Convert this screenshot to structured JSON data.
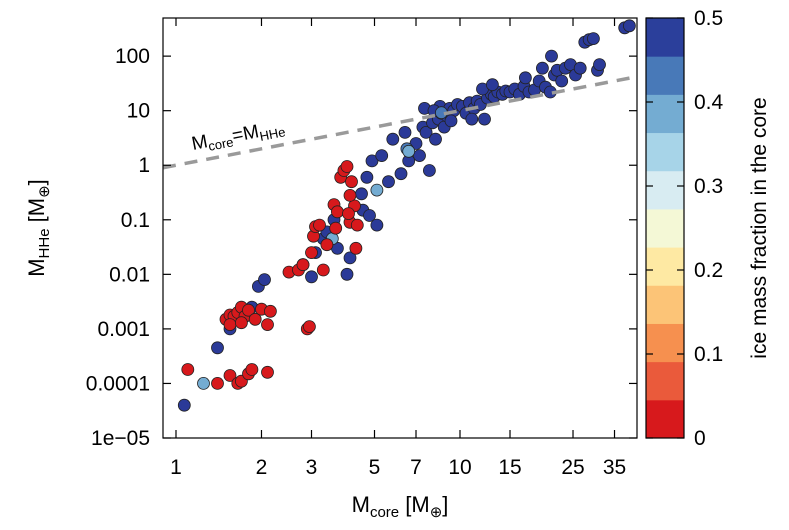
{
  "chart_data": {
    "type": "scatter",
    "xscale": "log",
    "yscale": "log",
    "xlim": [
      0.9,
      42
    ],
    "ylim": [
      1e-05,
      500
    ],
    "grid": false,
    "xlabel": {
      "main": "M",
      "sub": "core",
      "unit": " [M",
      "sym": "⊕",
      "close": "]"
    },
    "ylabel": {
      "main": "M",
      "sub": "HHe",
      "unit": " [M",
      "sym": "⊕",
      "close": "]"
    },
    "xticks": [
      {
        "value": 1,
        "label": "1"
      },
      {
        "value": 2,
        "label": "2"
      },
      {
        "value": 3,
        "label": "3"
      },
      {
        "value": 5,
        "label": "5"
      },
      {
        "value": 7,
        "label": "7"
      },
      {
        "value": 10,
        "label": "10"
      },
      {
        "value": 15,
        "label": "15"
      },
      {
        "value": 25,
        "label": "25"
      },
      {
        "value": 35,
        "label": "35"
      }
    ],
    "yticks": [
      {
        "value": 1e-05,
        "label": "1e−05"
      },
      {
        "value": 0.0001,
        "label": "0.0001"
      },
      {
        "value": 0.001,
        "label": "0.001"
      },
      {
        "value": 0.01,
        "label": "0.01"
      },
      {
        "value": 0.1,
        "label": "0.1"
      },
      {
        "value": 1,
        "label": "1"
      },
      {
        "value": 10,
        "label": "10"
      },
      {
        "value": 100,
        "label": "100"
      }
    ],
    "reference_line": {
      "label_main": "M",
      "label_sub1": "core",
      "label_eq": "=M",
      "label_sub2": "HHe",
      "x": [
        0.9,
        42
      ],
      "y": [
        0.9,
        42
      ],
      "color": "#9a9a9a"
    },
    "colorbar": {
      "label": "ice mass fraction in the core",
      "range": [
        0,
        0.5
      ],
      "ticks": [
        {
          "value": 0,
          "label": "0"
        },
        {
          "value": 0.1,
          "label": "0.1"
        },
        {
          "value": 0.2,
          "label": "0.2"
        },
        {
          "value": 0.3,
          "label": "0.3"
        },
        {
          "value": 0.4,
          "label": "0.4"
        },
        {
          "value": 0.5,
          "label": "0.5"
        }
      ],
      "colors": [
        "#d7191c",
        "#ea5a3b",
        "#f6904f",
        "#fcc477",
        "#fee9a3",
        "#f4f8d6",
        "#d8ecf2",
        "#a7d4e8",
        "#74acd2",
        "#4879b8",
        "#2b3f9b"
      ]
    },
    "series": [
      {
        "ice": 0.5,
        "color": "#2b3a98",
        "points": [
          [
            1.07,
            4e-05
          ],
          [
            1.4,
            0.00045
          ],
          [
            1.55,
            0.001
          ],
          [
            1.85,
            0.0025
          ],
          [
            1.95,
            0.006
          ],
          [
            2.05,
            0.008
          ],
          [
            2.8,
            0.015
          ],
          [
            3.0,
            0.009
          ],
          [
            3.1,
            0.025
          ],
          [
            3.3,
            0.045
          ],
          [
            3.4,
            0.06
          ],
          [
            3.6,
            0.1
          ],
          [
            3.7,
            0.03
          ],
          [
            4.0,
            0.01
          ],
          [
            4.1,
            0.02
          ],
          [
            4.5,
            0.3
          ],
          [
            4.55,
            0.15
          ],
          [
            4.7,
            0.6
          ],
          [
            4.8,
            0.12
          ],
          [
            4.9,
            1.2
          ],
          [
            5.1,
            0.08
          ],
          [
            5.3,
            1.5
          ],
          [
            5.6,
            0.5
          ],
          [
            5.8,
            3
          ],
          [
            6.2,
            0.7
          ],
          [
            6.4,
            4
          ],
          [
            6.6,
            1.2
          ],
          [
            7.0,
            2.5
          ],
          [
            7.2,
            1.5
          ],
          [
            7.4,
            5
          ],
          [
            7.6,
            4
          ],
          [
            7.8,
            0.8
          ],
          [
            7.5,
            11
          ],
          [
            8.0,
            6
          ],
          [
            8.2,
            3
          ],
          [
            8.4,
            7
          ],
          [
            8.6,
            9
          ],
          [
            8.8,
            5
          ],
          [
            8.5,
            12
          ],
          [
            9.0,
            8
          ],
          [
            9.2,
            11
          ],
          [
            9.5,
            10
          ],
          [
            9.8,
            13
          ],
          [
            10.2,
            12
          ],
          [
            10.5,
            9
          ],
          [
            10.8,
            14
          ],
          [
            11.2,
            11
          ],
          [
            11.5,
            15
          ],
          [
            11.8,
            13
          ],
          [
            12.2,
            7
          ],
          [
            12.5,
            17
          ],
          [
            12.9,
            20
          ],
          [
            13.2,
            18
          ],
          [
            13.6,
            22
          ],
          [
            14.1,
            20
          ],
          [
            14.5,
            23
          ],
          [
            15.0,
            22
          ],
          [
            15.6,
            25
          ],
          [
            16.2,
            20
          ],
          [
            16.8,
            28
          ],
          [
            17.5,
            22
          ],
          [
            18.3,
            24
          ],
          [
            19.0,
            35
          ],
          [
            20.0,
            27
          ],
          [
            20.8,
            22
          ],
          [
            21.5,
            45
          ],
          [
            22.0,
            55
          ],
          [
            22.8,
            35
          ],
          [
            23.5,
            60
          ],
          [
            24.5,
            70
          ],
          [
            25.5,
            45
          ],
          [
            26.5,
            60
          ],
          [
            27.5,
            180
          ],
          [
            28.5,
            200
          ],
          [
            29.5,
            210
          ],
          [
            30.5,
            55
          ],
          [
            31.0,
            70
          ],
          [
            38.0,
            330
          ],
          [
            39.5,
            360
          ],
          [
            19.5,
            60
          ],
          [
            21.0,
            100
          ],
          [
            17.0,
            40
          ],
          [
            12.0,
            25
          ],
          [
            13.0,
            30
          ],
          [
            9.3,
            6.5
          ],
          [
            8.1,
            10
          ],
          [
            11.0,
            7
          ]
        ]
      },
      {
        "ice": 0.4,
        "color": "#4879b8",
        "points": [
          [
            6.5,
            2.0
          ],
          [
            8.6,
            9.2
          ]
        ]
      },
      {
        "ice": 0.35,
        "color": "#74acd2",
        "points": [
          [
            1.25,
            0.0001
          ],
          [
            3.55,
            0.045
          ],
          [
            5.1,
            0.35
          ],
          [
            6.6,
            1.8
          ]
        ]
      },
      {
        "ice": 0.0,
        "color": "#d7191c",
        "points": [
          [
            1.1,
            0.00018
          ],
          [
            1.4,
            0.0001
          ],
          [
            1.55,
            0.00014
          ],
          [
            1.65,
            0.0001
          ],
          [
            1.7,
            0.00011
          ],
          [
            1.8,
            0.00015
          ],
          [
            1.85,
            0.00018
          ],
          [
            2.1,
            0.00016
          ],
          [
            1.5,
            0.0015
          ],
          [
            1.55,
            0.0018
          ],
          [
            1.6,
            0.0017
          ],
          [
            1.65,
            0.002
          ],
          [
            1.7,
            0.0025
          ],
          [
            1.75,
            0.0017
          ],
          [
            1.8,
            0.0022
          ],
          [
            1.9,
            0.0015
          ],
          [
            2.0,
            0.0023
          ],
          [
            2.1,
            0.0012
          ],
          [
            2.15,
            0.0021
          ],
          [
            1.55,
            0.0012
          ],
          [
            1.7,
            0.0013
          ],
          [
            2.5,
            0.011
          ],
          [
            2.7,
            0.012
          ],
          [
            2.8,
            0.015
          ],
          [
            2.9,
            0.001
          ],
          [
            2.95,
            0.0011
          ],
          [
            3.0,
            0.025
          ],
          [
            3.05,
            0.05
          ],
          [
            3.1,
            0.075
          ],
          [
            3.2,
            0.08
          ],
          [
            3.4,
            0.035
          ],
          [
            3.6,
            0.19
          ],
          [
            3.7,
            0.14
          ],
          [
            3.8,
            0.6
          ],
          [
            3.9,
            0.8
          ],
          [
            4.0,
            0.95
          ],
          [
            4.1,
            0.09
          ],
          [
            4.15,
            0.5
          ],
          [
            4.25,
            0.18
          ],
          [
            4.35,
            0.08
          ],
          [
            4.1,
            0.28
          ],
          [
            3.3,
            0.012
          ],
          [
            4.3,
            0.03
          ],
          [
            3.65,
            0.07
          ],
          [
            4.05,
            0.13
          ]
        ]
      }
    ]
  }
}
